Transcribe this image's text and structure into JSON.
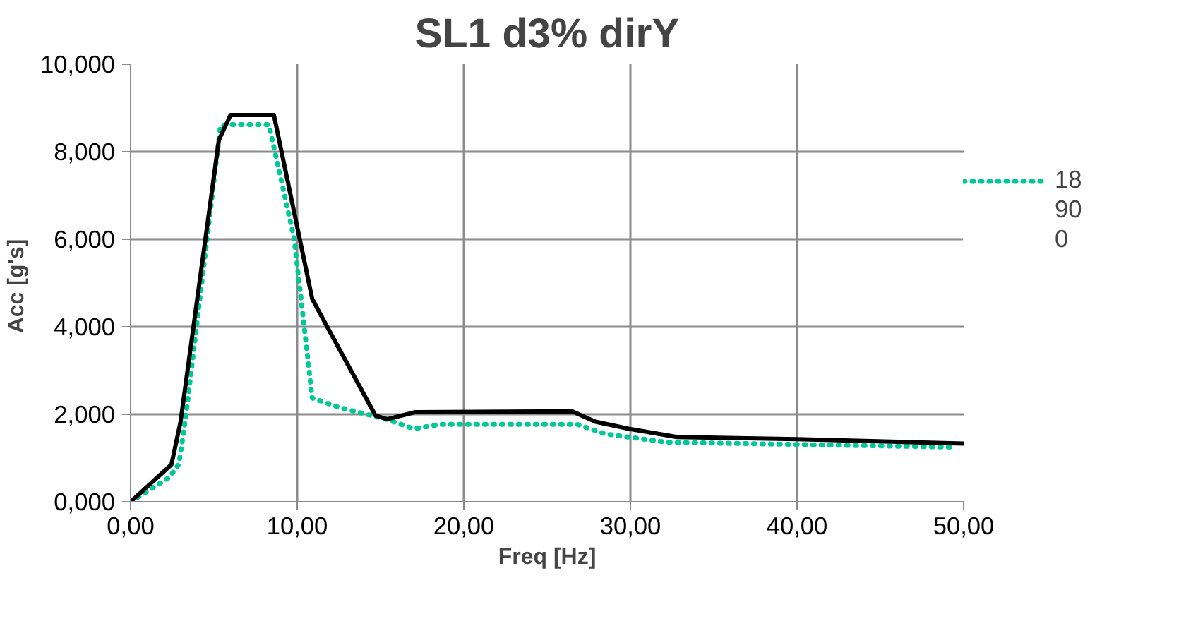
{
  "chart_data": {
    "type": "line",
    "title": "SL1 d3% dirY",
    "xlabel": "Freq [Hz]",
    "ylabel": "Acc  [g's]",
    "xlim": [
      0,
      50
    ],
    "ylim": [
      0,
      10
    ],
    "xticks": [
      {
        "value": 0,
        "label": "0,00"
      },
      {
        "value": 10,
        "label": "10,00"
      },
      {
        "value": 20,
        "label": "20,00"
      },
      {
        "value": 30,
        "label": "30,00"
      },
      {
        "value": 40,
        "label": "40,00"
      },
      {
        "value": 50,
        "label": "50,00"
      }
    ],
    "yticks": [
      {
        "value": 0,
        "label": "0,000"
      },
      {
        "value": 2,
        "label": "2,000"
      },
      {
        "value": 4,
        "label": "4,000"
      },
      {
        "value": 6,
        "label": "6,000"
      },
      {
        "value": 8,
        "label": "8,000"
      },
      {
        "value": 10,
        "label": "10,000"
      }
    ],
    "grid": true,
    "legend": "right",
    "series": [
      {
        "name": "18\n90\n0",
        "color": "#00c896",
        "line_style": "dotted",
        "x": [
          0,
          2.3,
          2.9,
          3.3,
          5.4,
          6.1,
          8.3,
          9.8,
          10.2,
          10.9,
          12.6,
          15.4,
          17.0,
          18.6,
          26.8,
          28.5,
          32.2,
          49.5
        ],
        "values": [
          0,
          0.55,
          0.86,
          1.9,
          8.6,
          8.62,
          8.62,
          6.05,
          4.75,
          2.37,
          2.15,
          1.88,
          1.67,
          1.77,
          1.77,
          1.55,
          1.36,
          1.25
        ]
      },
      {
        "color": "#000000",
        "line_style": "solid",
        "x": [
          0,
          2.45,
          3.0,
          5.3,
          6.0,
          8.6,
          10.9,
          11.4,
          14.7,
          15.4,
          17.1,
          26.5,
          27.9,
          29.9,
          32.8,
          40,
          50
        ],
        "values": [
          0,
          0.85,
          1.83,
          8.27,
          8.84,
          8.84,
          4.64,
          4.28,
          1.97,
          1.89,
          2.05,
          2.07,
          1.83,
          1.67,
          1.48,
          1.43,
          1.33
        ]
      }
    ]
  }
}
